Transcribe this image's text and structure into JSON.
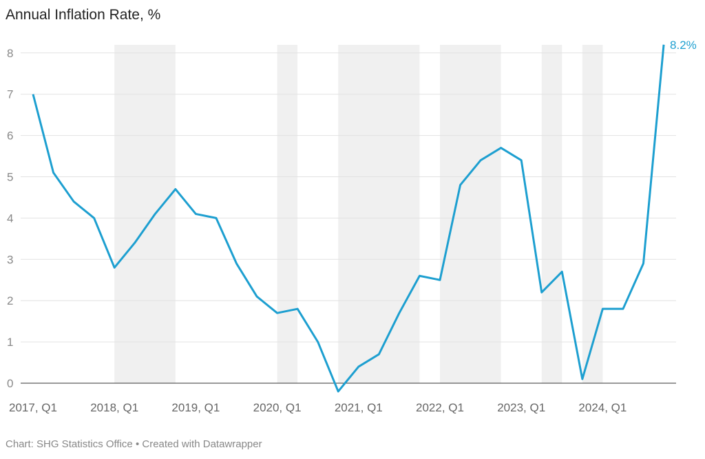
{
  "chart_data": {
    "type": "line",
    "title": "Annual Inflation Rate, %",
    "credit": "Chart: SHG Statistics Office • Created with Datawrapper",
    "xlabel": "",
    "ylabel": "",
    "ylim": [
      0,
      8
    ],
    "yticks": [
      "0",
      "1",
      "2",
      "3",
      "4",
      "5",
      "6",
      "7",
      "8"
    ],
    "x": [
      "2017 Q1",
      "2017 Q2",
      "2017 Q3",
      "2017 Q4",
      "2018 Q1",
      "2018 Q2",
      "2018 Q3",
      "2018 Q4",
      "2019 Q1",
      "2019 Q2",
      "2019 Q3",
      "2019 Q4",
      "2020 Q1",
      "2020 Q2",
      "2020 Q3",
      "2020 Q4",
      "2021 Q1",
      "2021 Q2",
      "2021 Q3",
      "2021 Q4",
      "2022 Q1",
      "2022 Q2",
      "2022 Q3",
      "2022 Q4",
      "2023 Q1",
      "2023 Q2",
      "2023 Q3",
      "2023 Q4",
      "2024 Q1",
      "2024 Q2",
      "2024 Q3",
      "2024 Q4"
    ],
    "xtick_labels": [
      {
        "index": 0,
        "label": "2017, Q1"
      },
      {
        "index": 4,
        "label": "2018, Q1"
      },
      {
        "index": 8,
        "label": "2019, Q1"
      },
      {
        "index": 12,
        "label": "2020, Q1"
      },
      {
        "index": 16,
        "label": "2021, Q1"
      },
      {
        "index": 20,
        "label": "2022, Q1"
      },
      {
        "index": 24,
        "label": "2023, Q1"
      },
      {
        "index": 28,
        "label": "2024, Q1"
      }
    ],
    "series": [
      {
        "name": "Annual Inflation Rate",
        "color": "#1d9fd0",
        "values": [
          7.0,
          5.1,
          4.4,
          4.0,
          2.8,
          3.4,
          4.1,
          4.7,
          4.1,
          4.0,
          2.9,
          2.1,
          1.7,
          1.8,
          1.0,
          -0.2,
          0.4,
          0.7,
          1.7,
          2.6,
          2.5,
          4.8,
          5.4,
          5.7,
          5.4,
          2.2,
          2.7,
          0.1,
          1.8,
          1.8,
          2.9,
          8.2
        ]
      }
    ],
    "end_label": "8.2%",
    "shaded_ranges": [
      [
        4,
        7
      ],
      [
        12,
        13
      ],
      [
        15,
        19
      ],
      [
        20,
        23
      ],
      [
        25,
        26
      ],
      [
        27,
        28
      ]
    ],
    "grid": true
  }
}
